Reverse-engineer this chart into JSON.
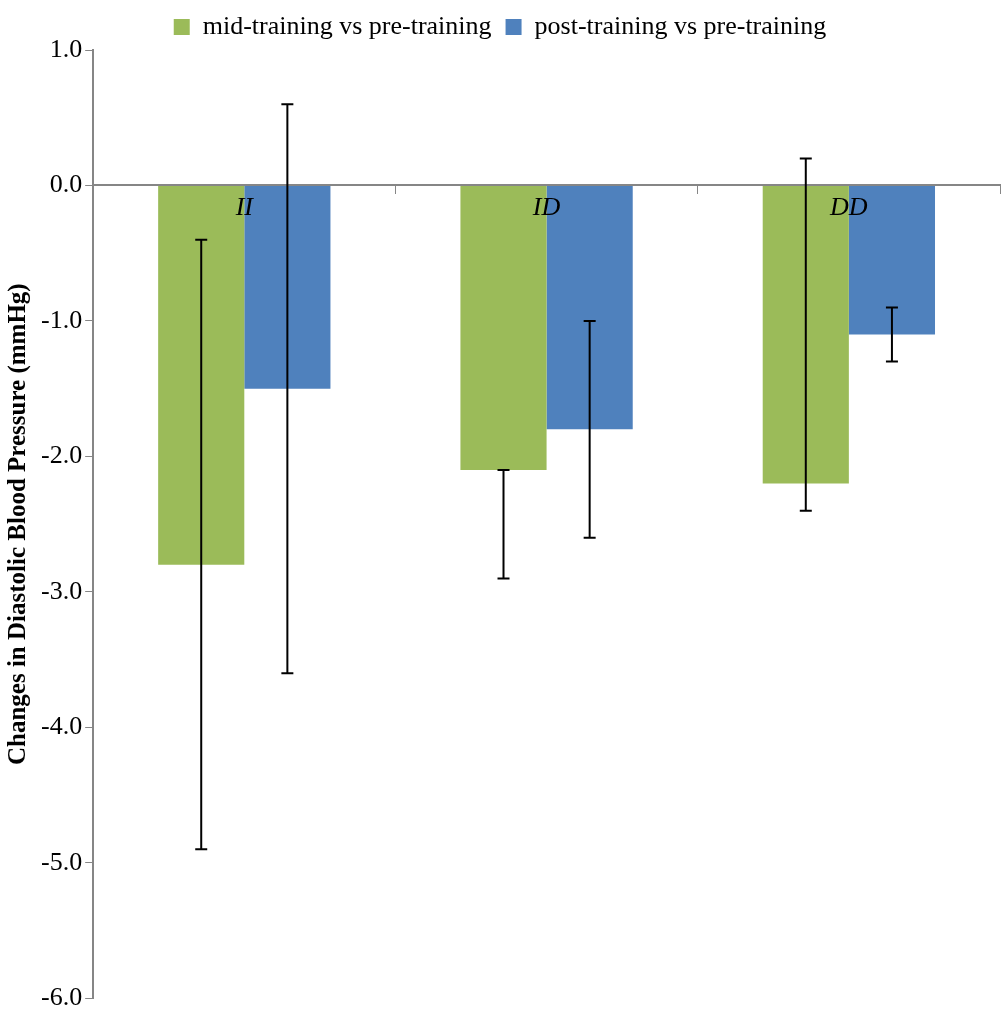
{
  "chart_data": {
    "type": "bar",
    "ylabel": "Changes in Diastolic Blood Pressure (mmHg)",
    "categories": [
      "II",
      "ID",
      "DD"
    ],
    "series": [
      {
        "name": "mid-training vs pre-training",
        "color": "#9bbb59",
        "values": [
          -2.8,
          -2.1,
          -2.2
        ],
        "errors": [
          [
            -4.9,
            -0.4
          ],
          [
            -2.9,
            -2.1
          ],
          [
            -2.4,
            0.2
          ]
        ]
      },
      {
        "name": "post-training vs pre-training",
        "color": "#4f81bd",
        "values": [
          -1.5,
          -1.8,
          -1.1
        ],
        "errors": [
          2.1,
          0.8,
          0.2
        ]
      }
    ],
    "ylim": [
      -6,
      1
    ],
    "yticks": [
      {
        "value": 1,
        "label": "1.0"
      },
      {
        "value": 0,
        "label": "0.0"
      },
      {
        "value": -1,
        "label": "-1.0"
      },
      {
        "value": -2,
        "label": "-2.0"
      },
      {
        "value": -3,
        "label": "-3.0"
      },
      {
        "value": -4,
        "label": "-4.0"
      },
      {
        "value": -5,
        "label": "-5.0"
      },
      {
        "value": -6,
        "label": "-6.0"
      }
    ],
    "grid": false,
    "legend": "top"
  }
}
